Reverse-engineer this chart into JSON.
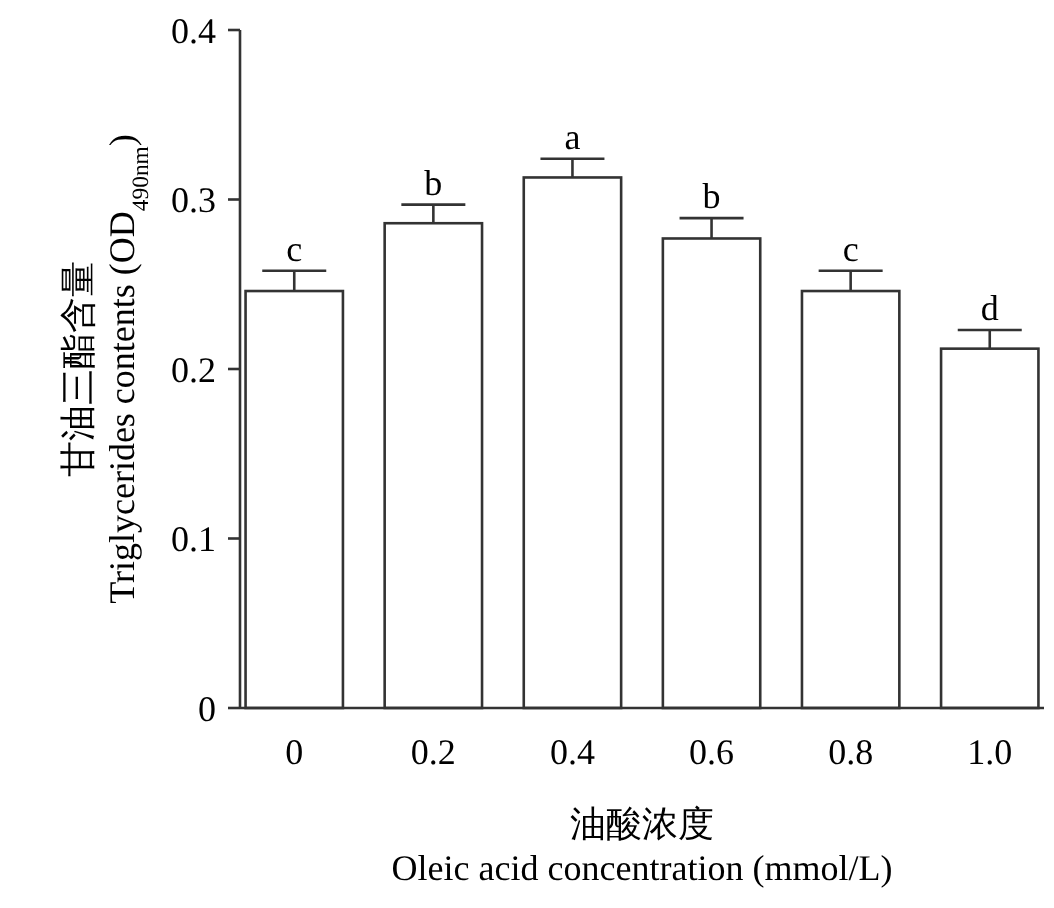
{
  "chart_data": {
    "type": "bar",
    "ylabel": "甘油三酯含量\nTriglycerides contents (OD$_{490nm}$)",
    "xlabel": "油酸浓度\nOleic acid concentration (mmol/L)",
    "categories": [
      "0",
      "0.2",
      "0.4",
      "0.6",
      "0.8",
      "1.0"
    ],
    "values": [
      0.246,
      0.286,
      0.313,
      0.277,
      0.246,
      0.212
    ],
    "errors": [
      0.012,
      0.011,
      0.011,
      0.012,
      0.012,
      0.011
    ],
    "color": "#ffffff",
    "ylim": [
      0,
      0.4
    ],
    "yticks": [
      0,
      0.1,
      0.2,
      0.3,
      0.4
    ],
    "grid": false,
    "annotations": [
      {
        "text": "c",
        "x": "0",
        "y": 0.258
      },
      {
        "text": "b",
        "x": "0.2",
        "y": 0.297
      },
      {
        "text": "a",
        "x": "0.4",
        "y": 0.324
      },
      {
        "text": "b",
        "x": "0.6",
        "y": 0.289
      },
      {
        "text": "c",
        "x": "0.8",
        "y": 0.258
      },
      {
        "text": "d",
        "x": "1.0",
        "y": 0.223
      }
    ]
  }
}
